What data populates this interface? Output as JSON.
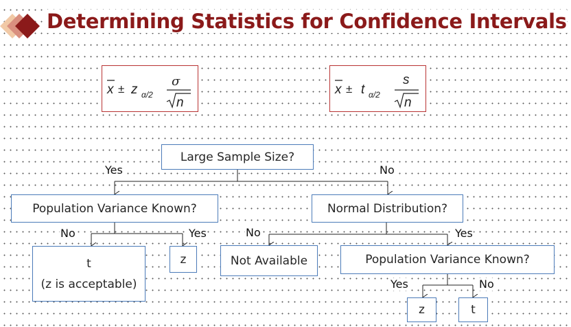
{
  "title": "Determining Statistics for Confidence Intervals",
  "colors": {
    "title": "#8b1a1a",
    "box_border": "#4a7ab8",
    "formula_border": "#b83232"
  },
  "formulas": {
    "z": {
      "xbar": "x",
      "pm": "±",
      "stat": "z",
      "sub": "α/2",
      "num": "σ",
      "den": "n"
    },
    "t": {
      "xbar": "x",
      "pm": "±",
      "stat": "t",
      "sub": "α/2",
      "num": "s",
      "den": "n"
    }
  },
  "nodes": {
    "large_sample": "Large Sample Size?",
    "pop_var_left": "Population Variance Known?",
    "normal_dist": "Normal Distribution?",
    "t_left_line1": "t",
    "t_left_line2": "(z is acceptable)",
    "z_left": "z",
    "not_available": "Not Available",
    "pop_var_right": "Population Variance Known?",
    "z_bottom": "z",
    "t_bottom": "t"
  },
  "labels": {
    "yes_top": "Yes",
    "no_top": "No",
    "no_left": "No",
    "yes_left": "Yes",
    "no_mid": "No",
    "yes_mid": "Yes",
    "yes_bottom": "Yes",
    "no_bottom": "No"
  }
}
